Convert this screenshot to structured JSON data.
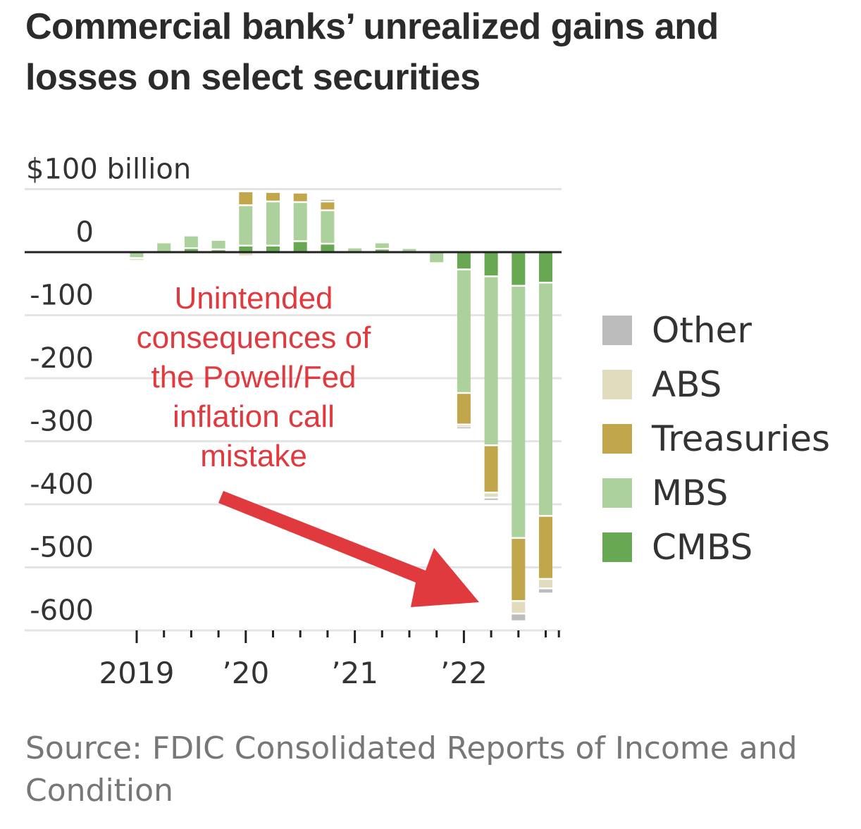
{
  "title_lines": [
    "Commercial banks’ unrealized gains and",
    "losses on select securities"
  ],
  "source_lines": [
    "Source: FDIC Consolidated Reports of Income and",
    "Condition"
  ],
  "annotation_lines": [
    "Unintended",
    "consequences of",
    "the Powell/Fed",
    "inflation call",
    "mistake"
  ],
  "colors": {
    "Other": "#bcbcbc",
    "ABS": "#e1dcbd",
    "Treasuries": "#c2a64b",
    "MBS": "#acd19c",
    "CMBS": "#68a853",
    "annotation": "#e0393e",
    "zero_line": "#222222",
    "grid": "#e4e4e4"
  },
  "chart_data": {
    "type": "bar",
    "stacked": true,
    "title": "Commercial banks’ unrealized gains and losses on select securities",
    "ylabel": "$100 billion",
    "ylim": [
      -600,
      100
    ],
    "yticks": [
      100,
      0,
      -100,
      -200,
      -300,
      -400,
      -500,
      -600
    ],
    "ytick_labels": [
      "$100 billion",
      "0",
      "-100",
      "-200",
      "-300",
      "-400",
      "-500",
      "-600"
    ],
    "xtick_labels": [
      {
        "label": "2019",
        "quarter_index": 0
      },
      {
        "label": "’20",
        "quarter_index": 4
      },
      {
        "label": "’21",
        "quarter_index": 8
      },
      {
        "label": "’22",
        "quarter_index": 12
      }
    ],
    "categories": [
      "2019 Q1",
      "2019 Q2",
      "2019 Q3",
      "2019 Q4",
      "2020 Q1",
      "2020 Q2",
      "2020 Q3",
      "2020 Q4",
      "2021 Q1",
      "2021 Q2",
      "2021 Q3",
      "2021 Q4",
      "2022 Q1",
      "2022 Q2",
      "2022 Q3",
      "2022 Q4"
    ],
    "series": [
      {
        "name": "CMBS",
        "values": [
          0,
          0,
          5,
          3,
          9,
          9,
          16,
          12,
          0,
          4,
          0,
          0,
          -26,
          -37,
          -52,
          -47
        ]
      },
      {
        "name": "MBS",
        "values": [
          -8,
          14,
          20,
          15,
          64,
          70,
          62,
          53,
          6,
          10,
          5,
          -16,
          -196,
          -268,
          -400,
          -370
        ]
      },
      {
        "name": "Treasuries",
        "values": [
          0,
          0,
          0,
          0,
          22,
          15,
          15,
          14,
          0,
          0,
          0,
          0,
          -50,
          -75,
          -100,
          -100
        ]
      },
      {
        "name": "ABS",
        "values": [
          -2,
          0,
          0,
          0,
          -5,
          0,
          0,
          0,
          0,
          0,
          0,
          0,
          -3,
          -8,
          -20,
          -15
        ]
      },
      {
        "name": "Other",
        "values": [
          0,
          0,
          0,
          0,
          0,
          0,
          0,
          4,
          0,
          0,
          0,
          0,
          -4,
          -5,
          -12,
          -8
        ]
      }
    ],
    "legend": [
      "Other",
      "ABS",
      "Treasuries",
      "MBS",
      "CMBS"
    ],
    "legend_position": "right",
    "grid": true
  }
}
